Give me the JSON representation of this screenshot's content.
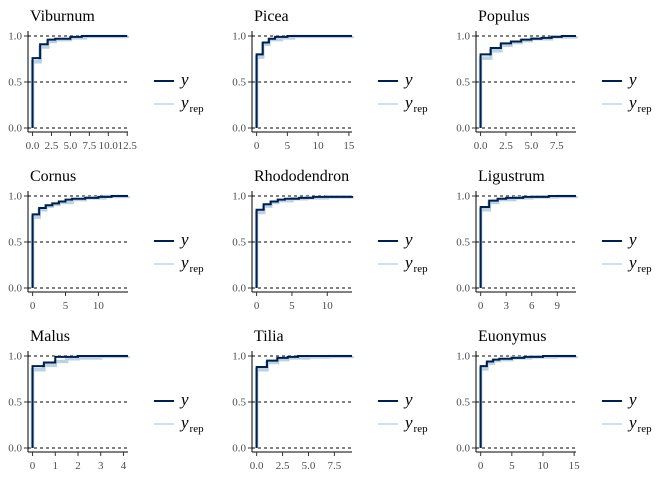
{
  "chart_data": {
    "type": "line",
    "legend": {
      "placement": "right of each panel",
      "entries": [
        {
          "symbol": "y",
          "subscript": "",
          "color": "#011f4b"
        },
        {
          "symbol": "y",
          "subscript": "rep",
          "color": "#b3cde0"
        }
      ]
    },
    "style": {
      "y_color": "#011f4b",
      "yrep_color": "#b3cde0",
      "reference_lines": [
        0,
        0.5,
        1
      ],
      "reference_line_style": "dashed",
      "grid": false
    },
    "panels": [
      {
        "title": "Viburnum",
        "xlim": [
          -0.6,
          12.6
        ],
        "ylim": [
          0,
          1
        ],
        "xticks": [
          0,
          2.5,
          5,
          7.5,
          10,
          12.5
        ],
        "xtick_labels": [
          "0.0",
          "2.5",
          "5.0",
          "7.5",
          "10.0",
          "12.5"
        ],
        "yticks": [
          0,
          0.5,
          1
        ],
        "ytick_labels": [
          "0.0",
          "0.5",
          "1.0"
        ],
        "y_ecdf": {
          "x": [
            0,
            0,
            1,
            2,
            3,
            5,
            6.5,
            12.5
          ],
          "y": [
            0,
            0.76,
            0.91,
            0.96,
            0.97,
            0.99,
            1,
            1
          ]
        },
        "yrep_ecdf": {
          "x": [
            0,
            0,
            1,
            2,
            3,
            5,
            7,
            12.5
          ],
          "y": [
            0,
            0.72,
            0.88,
            0.94,
            0.96,
            0.98,
            0.995,
            1
          ]
        }
      },
      {
        "title": "Picea",
        "xlim": [
          -0.75,
          15.5
        ],
        "ylim": [
          0,
          1
        ],
        "xticks": [
          0,
          5,
          10,
          15
        ],
        "xtick_labels": [
          "0",
          "5",
          "10",
          "15"
        ],
        "yticks": [
          0,
          0.5,
          1
        ],
        "ytick_labels": [
          "0.0",
          "0.5",
          "1.0"
        ],
        "y_ecdf": {
          "x": [
            0,
            0,
            1,
            2,
            3,
            5,
            15.5
          ],
          "y": [
            0,
            0.8,
            0.93,
            0.97,
            0.99,
            1,
            1
          ]
        },
        "yrep_ecdf": {
          "x": [
            0,
            0,
            1,
            2,
            4,
            6,
            15.5
          ],
          "y": [
            0,
            0.77,
            0.91,
            0.96,
            0.98,
            0.995,
            1
          ]
        }
      },
      {
        "title": "Populus",
        "xlim": [
          -0.45,
          9.4
        ],
        "ylim": [
          0,
          1
        ],
        "xticks": [
          0,
          2.5,
          5,
          7.5
        ],
        "xtick_labels": [
          "0.0",
          "2.5",
          "5.0",
          "7.5"
        ],
        "yticks": [
          0,
          0.5,
          1
        ],
        "ytick_labels": [
          "0.0",
          "0.5",
          "1.0"
        ],
        "y_ecdf": {
          "x": [
            0,
            0,
            1,
            2,
            3,
            4,
            5,
            6,
            7,
            8,
            9.4
          ],
          "y": [
            0,
            0.8,
            0.87,
            0.92,
            0.94,
            0.96,
            0.97,
            0.98,
            0.99,
            1,
            1
          ]
        },
        "yrep_ecdf": {
          "x": [
            0,
            0,
            1,
            2,
            3,
            4,
            5,
            7,
            9.4
          ],
          "y": [
            0,
            0.76,
            0.84,
            0.9,
            0.93,
            0.95,
            0.97,
            0.99,
            1
          ]
        }
      },
      {
        "title": "Cornus",
        "xlim": [
          -0.7,
          14.5
        ],
        "ylim": [
          0,
          1
        ],
        "xticks": [
          0,
          5,
          10
        ],
        "xtick_labels": [
          "0",
          "5",
          "10"
        ],
        "yticks": [
          0,
          0.5,
          1
        ],
        "ytick_labels": [
          "0.0",
          "0.5",
          "1.0"
        ],
        "y_ecdf": {
          "x": [
            0,
            0,
            1,
            2,
            3,
            4,
            5,
            6,
            8,
            10,
            12,
            14.5
          ],
          "y": [
            0,
            0.8,
            0.87,
            0.9,
            0.92,
            0.94,
            0.96,
            0.97,
            0.98,
            0.99,
            1,
            1
          ]
        },
        "yrep_ecdf": {
          "x": [
            0,
            0,
            1,
            2,
            3,
            4,
            6,
            8,
            11,
            14.5
          ],
          "y": [
            0,
            0.77,
            0.85,
            0.89,
            0.91,
            0.93,
            0.96,
            0.98,
            0.995,
            1
          ]
        }
      },
      {
        "title": "Rhododendron",
        "xlim": [
          -0.65,
          13.5
        ],
        "ylim": [
          0,
          1
        ],
        "xticks": [
          0,
          5,
          10
        ],
        "xtick_labels": [
          "0",
          "5",
          "10"
        ],
        "yticks": [
          0,
          0.5,
          1
        ],
        "ytick_labels": [
          "0.0",
          "0.5",
          "1.0"
        ],
        "y_ecdf": {
          "x": [
            0,
            0,
            1,
            2,
            3,
            4,
            6,
            8,
            13.5
          ],
          "y": [
            0,
            0.85,
            0.91,
            0.94,
            0.96,
            0.97,
            0.98,
            0.99,
            1
          ]
        },
        "yrep_ecdf": {
          "x": [
            0,
            0,
            1,
            2,
            3,
            5,
            7,
            10,
            13.5
          ],
          "y": [
            0,
            0.82,
            0.89,
            0.93,
            0.95,
            0.97,
            0.98,
            0.99,
            1
          ]
        }
      },
      {
        "title": "Ligustrum",
        "xlim": [
          -0.55,
          11.2
        ],
        "ylim": [
          0,
          1
        ],
        "xticks": [
          0,
          3,
          6,
          9
        ],
        "xtick_labels": [
          "0",
          "3",
          "6",
          "9"
        ],
        "yticks": [
          0,
          0.5,
          1
        ],
        "ytick_labels": [
          "0.0",
          "0.5",
          "1.0"
        ],
        "y_ecdf": {
          "x": [
            0,
            0,
            1,
            2,
            3,
            5,
            8,
            11.2
          ],
          "y": [
            0,
            0.88,
            0.95,
            0.97,
            0.98,
            0.99,
            1,
            1
          ]
        },
        "yrep_ecdf": {
          "x": [
            0,
            0,
            1,
            2,
            4,
            6,
            9,
            11.2
          ],
          "y": [
            0,
            0.85,
            0.93,
            0.96,
            0.98,
            0.99,
            0.995,
            1
          ]
        }
      },
      {
        "title": "Malus",
        "xlim": [
          -0.2,
          4.2
        ],
        "ylim": [
          0,
          1
        ],
        "xticks": [
          0,
          1,
          2,
          3,
          4
        ],
        "xtick_labels": [
          "0",
          "1",
          "2",
          "3",
          "4"
        ],
        "yticks": [
          0,
          0.5,
          1
        ],
        "ytick_labels": [
          "0.0",
          "0.5",
          "1.0"
        ],
        "y_ecdf": {
          "x": [
            0,
            0,
            0.5,
            1,
            2,
            3,
            4.2
          ],
          "y": [
            0,
            0.89,
            0.93,
            0.99,
            1,
            1,
            1
          ]
        },
        "yrep_ecdf": {
          "x": [
            0,
            0,
            0.5,
            1,
            1.5,
            2,
            3,
            4.2
          ],
          "y": [
            0,
            0.85,
            0.9,
            0.94,
            0.97,
            0.98,
            0.995,
            1
          ]
        }
      },
      {
        "title": "Tilia",
        "xlim": [
          -0.45,
          9.2
        ],
        "ylim": [
          0,
          1
        ],
        "xticks": [
          0,
          2.5,
          5,
          7.5
        ],
        "xtick_labels": [
          "0.0",
          "2.5",
          "5.0",
          "7.5"
        ],
        "yticks": [
          0,
          0.5,
          1
        ],
        "ytick_labels": [
          "0.0",
          "0.5",
          "1.0"
        ],
        "y_ecdf": {
          "x": [
            0,
            0,
            1,
            2,
            3,
            4,
            6,
            9.2
          ],
          "y": [
            0,
            0.88,
            0.95,
            0.98,
            0.99,
            1,
            1,
            1
          ]
        },
        "yrep_ecdf": {
          "x": [
            0,
            0,
            1,
            2,
            3,
            5,
            7,
            9.2
          ],
          "y": [
            0,
            0.85,
            0.93,
            0.96,
            0.98,
            0.99,
            0.995,
            1
          ]
        }
      },
      {
        "title": "Euonymus",
        "xlim": [
          -0.75,
          15.3
        ],
        "ylim": [
          0,
          1
        ],
        "xticks": [
          0,
          5,
          10,
          15
        ],
        "xtick_labels": [
          "0",
          "5",
          "10",
          "15"
        ],
        "yticks": [
          0,
          0.5,
          1
        ],
        "ytick_labels": [
          "0.0",
          "0.5",
          "1.0"
        ],
        "y_ecdf": {
          "x": [
            0,
            0,
            1,
            2,
            3,
            5,
            7,
            10,
            15.3
          ],
          "y": [
            0,
            0.89,
            0.94,
            0.96,
            0.97,
            0.98,
            0.99,
            1,
            1
          ]
        },
        "yrep_ecdf": {
          "x": [
            0,
            0,
            1,
            2,
            3,
            5,
            8,
            12,
            15.3
          ],
          "y": [
            0,
            0.86,
            0.92,
            0.95,
            0.96,
            0.98,
            0.99,
            0.995,
            1
          ]
        }
      }
    ]
  }
}
